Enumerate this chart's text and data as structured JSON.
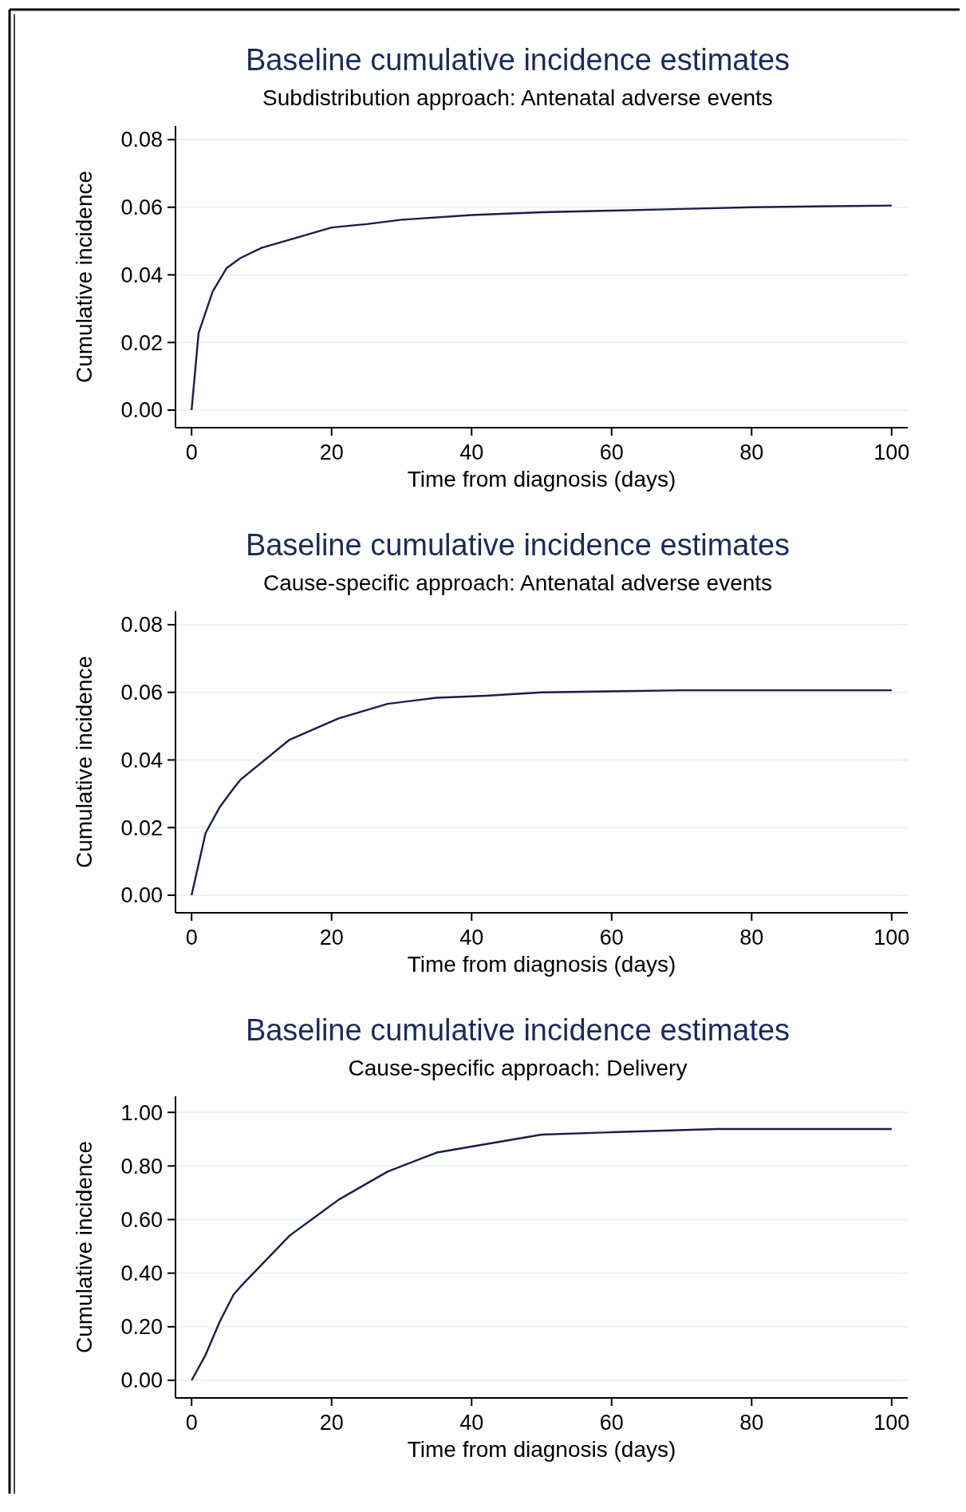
{
  "chart_data": [
    {
      "type": "line",
      "title": "Baseline cumulative incidence estimates",
      "subtitle": "Subdistribution approach: Antenatal adverse events",
      "xlabel": "Time from diagnosis (days)",
      "ylabel": "Cumulative incidence",
      "x": [
        0,
        1,
        3,
        5,
        7,
        10,
        15,
        20,
        25,
        30,
        40,
        50,
        60,
        70,
        80,
        100
      ],
      "series": [
        {
          "color": "#1c1c4a",
          "values": [
            0,
            0.0228,
            0.035,
            0.042,
            0.045,
            0.048,
            0.051,
            0.054,
            0.055,
            0.0563,
            0.0577,
            0.0585,
            0.059,
            0.0595,
            0.06,
            0.0605
          ]
        }
      ],
      "xlim": [
        -2.3,
        102.3
      ],
      "xticks": [
        0,
        20,
        40,
        60,
        80,
        100
      ],
      "ylim": [
        0,
        0.084
      ],
      "yticks": [
        {
          "value": 0,
          "label": "0.00"
        },
        {
          "value": 0.02,
          "label": "0.02"
        },
        {
          "value": 0.04,
          "label": "0.04"
        },
        {
          "value": 0.06,
          "label": "0.06"
        },
        {
          "value": 0.08,
          "label": "0.08"
        }
      ],
      "grid": "y"
    },
    {
      "type": "line",
      "title": "Baseline cumulative incidence estimates",
      "subtitle": "Cause-specific approach: Antenatal adverse events",
      "xlabel": "Time from diagnosis (days)",
      "ylabel": "Cumulative incidence",
      "x": [
        0,
        2,
        4,
        6,
        7,
        14,
        21,
        28,
        35,
        42,
        50,
        70,
        100
      ],
      "series": [
        {
          "color": "#1c1c4a",
          "values": [
            0,
            0.0184,
            0.026,
            0.0316,
            0.0342,
            0.046,
            0.0523,
            0.0566,
            0.0584,
            0.059,
            0.06,
            0.0606,
            0.0606
          ]
        }
      ],
      "xlim": [
        -2.3,
        102.3
      ],
      "xticks": [
        0,
        20,
        40,
        60,
        80,
        100
      ],
      "ylim": [
        0,
        0.084
      ],
      "yticks": [
        {
          "value": 0,
          "label": "0.00"
        },
        {
          "value": 0.02,
          "label": "0.02"
        },
        {
          "value": 0.04,
          "label": "0.04"
        },
        {
          "value": 0.06,
          "label": "0.06"
        },
        {
          "value": 0.08,
          "label": "0.08"
        }
      ],
      "grid": "y"
    },
    {
      "type": "line",
      "title": "Baseline cumulative incidence estimates",
      "subtitle": "Cause-specific approach: Delivery",
      "xlabel": "Time from diagnosis (days)",
      "ylabel": "Cumulative incidence",
      "x": [
        0,
        2,
        4,
        6,
        7,
        14,
        21,
        28,
        35,
        50,
        60,
        75,
        100
      ],
      "series": [
        {
          "color": "#1c1c4a",
          "values": [
            0,
            0.095,
            0.218,
            0.32,
            0.35,
            0.54,
            0.674,
            0.779,
            0.85,
            0.917,
            0.926,
            0.938,
            0.938
          ]
        }
      ],
      "xlim": [
        -2.3,
        102.3
      ],
      "xticks": [
        0,
        20,
        40,
        60,
        80,
        100
      ],
      "ylim": [
        0,
        1.06
      ],
      "yticks": [
        {
          "value": 0,
          "label": "0.00"
        },
        {
          "value": 0.2,
          "label": "0.20"
        },
        {
          "value": 0.4,
          "label": "0.40"
        },
        {
          "value": 0.6,
          "label": "0.60"
        },
        {
          "value": 0.8,
          "label": "0.80"
        },
        {
          "value": 1,
          "label": "1.00"
        }
      ],
      "grid": "y"
    }
  ]
}
